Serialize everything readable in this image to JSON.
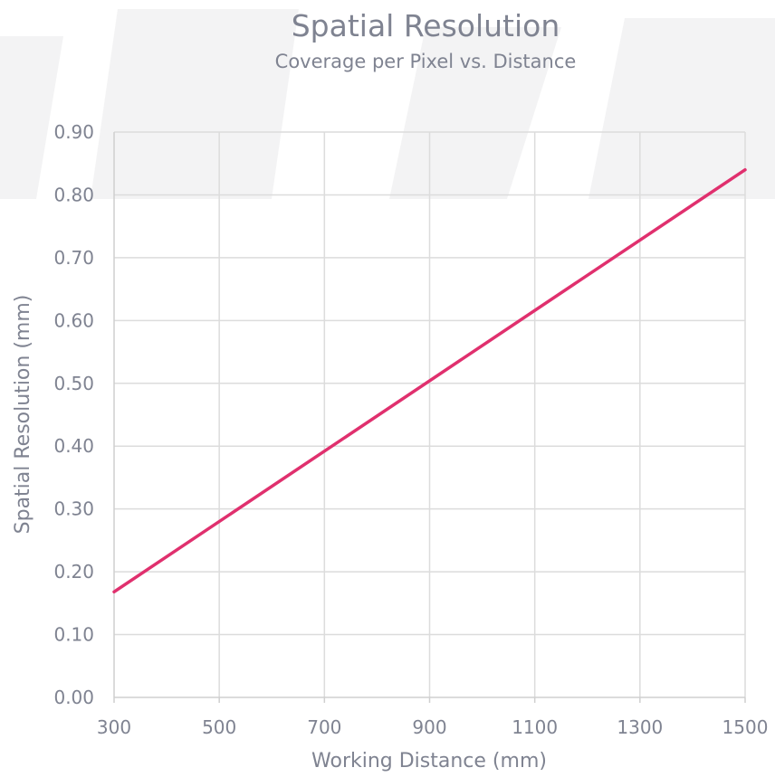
{
  "chart_data": {
    "type": "line",
    "title": "Spatial Resolution",
    "subtitle": "Coverage per Pixel vs. Distance",
    "xlabel": "Working Distance (mm)",
    "ylabel": "Spatial Resolution (mm)",
    "xlim": [
      300,
      1500
    ],
    "ylim": [
      0,
      0.9
    ],
    "x_ticks": [
      "300",
      "500",
      "700",
      "900",
      "1100",
      "1300",
      "1500"
    ],
    "y_ticks": [
      "0.00",
      "0.10",
      "0.20",
      "0.30",
      "0.40",
      "0.50",
      "0.60",
      "0.70",
      "0.80",
      "0.90"
    ],
    "grid": true,
    "series": [
      {
        "color": "#e0306e",
        "x": [
          300,
          1500
        ],
        "y": [
          0.168,
          0.84
        ]
      }
    ]
  }
}
